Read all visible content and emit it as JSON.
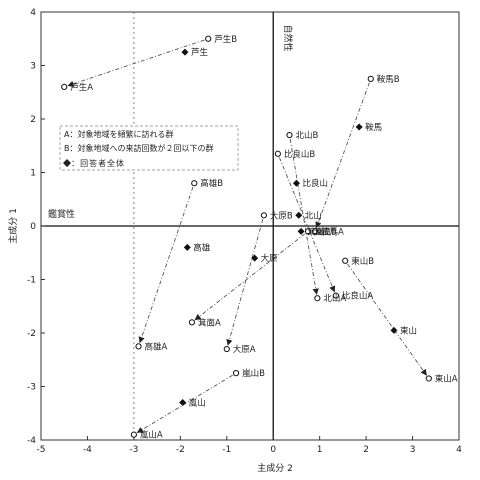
{
  "chart_data": {
    "type": "scatter",
    "title": "",
    "xlabel": "主成分 2",
    "ylabel": "主成分 1",
    "xlim": [
      -5,
      4
    ],
    "ylim": [
      -4,
      4
    ],
    "x_ticks": [
      -5,
      -4,
      -3,
      -2,
      -1,
      0,
      1,
      2,
      3,
      4
    ],
    "y_ticks": [
      4,
      3,
      2,
      1,
      0,
      -1,
      -2,
      -3,
      -4
    ],
    "axis_annotations": {
      "natural": "自然性",
      "appreciation": "鑑賞性"
    },
    "legend": {
      "placement": "upper-left",
      "items": [
        {
          "marker": "none",
          "text": "A：対象地域を頻繁に訪れる群"
        },
        {
          "marker": "none",
          "text": "B：対象地域への来訪回数が２回以下の群"
        },
        {
          "marker": "diamond",
          "text": "◆：回答者全体"
        }
      ]
    },
    "series": [
      {
        "name": "A",
        "marker": "open-circle",
        "points": [
          {
            "label": "芦生A",
            "x": -4.5,
            "y": 2.6
          },
          {
            "label": "高雄A",
            "x": -2.9,
            "y": -2.25
          },
          {
            "label": "箕面A",
            "x": -1.75,
            "y": -1.8
          },
          {
            "label": "大原A",
            "x": -1.0,
            "y": -2.3
          },
          {
            "label": "嵐山A",
            "x": -3.0,
            "y": -3.9
          },
          {
            "label": "鞍馬A",
            "x": 0.9,
            "y": -0.1
          },
          {
            "label": "北山A",
            "x": 0.95,
            "y": -1.35
          },
          {
            "label": "比良山A",
            "x": 1.35,
            "y": -1.3
          },
          {
            "label": "東山A",
            "x": 3.35,
            "y": -2.85
          }
        ]
      },
      {
        "name": "B",
        "marker": "open-circle",
        "points": [
          {
            "label": "芦生B",
            "x": -1.4,
            "y": 3.5
          },
          {
            "label": "高雄B",
            "x": -1.7,
            "y": 0.8
          },
          {
            "label": "大原B",
            "x": -0.2,
            "y": 0.2
          },
          {
            "label": "嵐山B",
            "x": -0.8,
            "y": -2.75
          },
          {
            "label": "鞍馬B",
            "x": 2.1,
            "y": 2.75
          },
          {
            "label": "北山B",
            "x": 0.35,
            "y": 1.7
          },
          {
            "label": "比良山B",
            "x": 0.1,
            "y": 1.35
          },
          {
            "label": "箕面B",
            "x": 0.75,
            "y": -0.1
          },
          {
            "label": "東山B",
            "x": 1.55,
            "y": -0.65
          }
        ]
      },
      {
        "name": "◆：回答者全体",
        "marker": "diamond",
        "points": [
          {
            "label": "芦生",
            "x": -1.9,
            "y": 3.25
          },
          {
            "label": "高雄",
            "x": -1.85,
            "y": -0.4
          },
          {
            "label": "大原",
            "x": -0.4,
            "y": -0.6
          },
          {
            "label": "嵐山",
            "x": -1.95,
            "y": -3.3
          },
          {
            "label": "箕面",
            "x": 0.6,
            "y": -0.1
          },
          {
            "label": "鞍馬",
            "x": 1.85,
            "y": 1.85
          },
          {
            "label": "北山",
            "x": 0.55,
            "y": 0.2
          },
          {
            "label": "比良山",
            "x": 0.5,
            "y": 0.8
          },
          {
            "label": "東山",
            "x": 2.6,
            "y": -1.95
          }
        ]
      }
    ],
    "arrows": [
      [
        "芦生B",
        "芦生A"
      ],
      [
        "高雄B",
        "高雄A"
      ],
      [
        "大原B",
        "大原A"
      ],
      [
        "嵐山B",
        "嵐山A"
      ],
      [
        "箕面B",
        "箕面A"
      ],
      [
        "鞍馬B",
        "鞍馬A"
      ],
      [
        "北山B",
        "北山A"
      ],
      [
        "比良山B",
        "比良山A"
      ],
      [
        "東山B",
        "東山A"
      ]
    ]
  }
}
